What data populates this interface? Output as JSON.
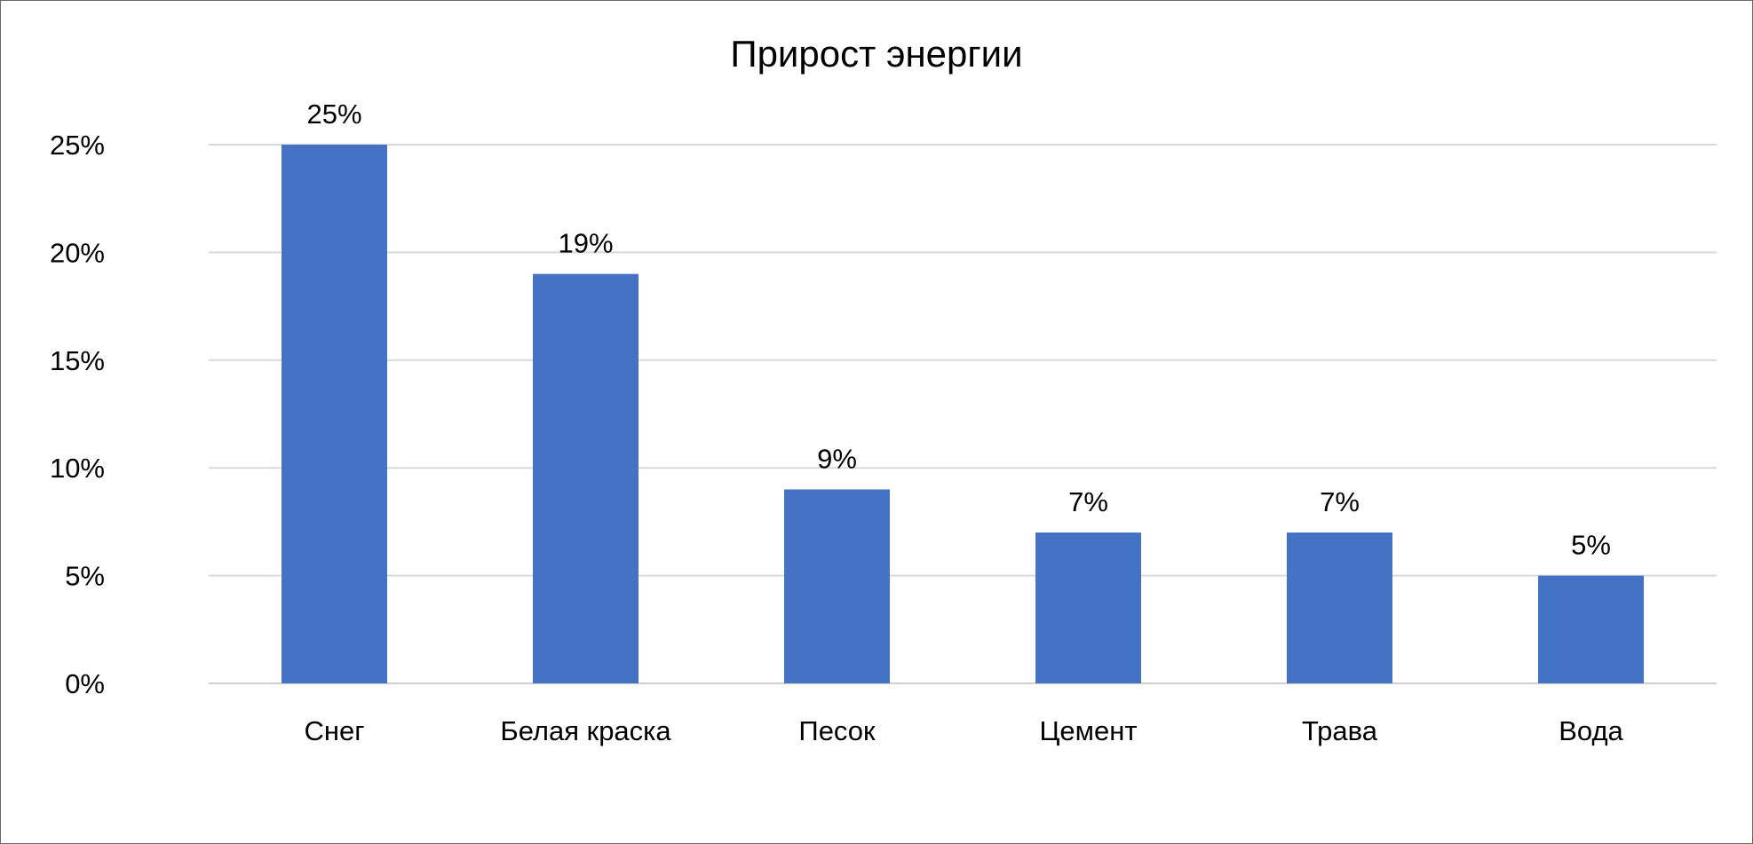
{
  "chart_data": {
    "type": "bar",
    "title": "Прирост энергии",
    "xlabel": "",
    "ylabel": "",
    "categories": [
      "Снег",
      "Белая краска",
      "Песок",
      "Цемент",
      "Трава",
      "Вода"
    ],
    "values": [
      25,
      19,
      9,
      7,
      7,
      5
    ],
    "data_labels": [
      "25%",
      "19%",
      "9%",
      "7%",
      "7%",
      "5%"
    ],
    "y_ticks": [
      0,
      5,
      10,
      15,
      20,
      25
    ],
    "y_tick_labels": [
      "0%",
      "5%",
      "10%",
      "15%",
      "20%",
      "25%"
    ],
    "ylim": [
      0,
      25
    ],
    "grid": true,
    "legend": "none",
    "bar_color": "#4472C4"
  }
}
